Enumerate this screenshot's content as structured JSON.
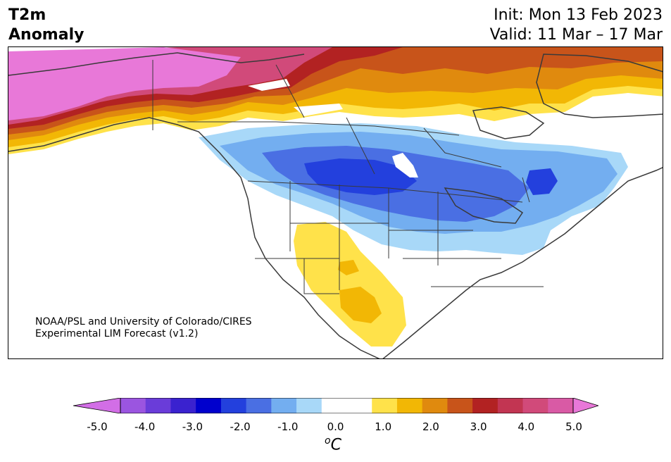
{
  "title": {
    "line1": "T2m",
    "line2": "Anomaly"
  },
  "dates": {
    "init": "Init: Mon 13 Feb 2023",
    "valid": "Valid: 11 Mar – 17 Mar"
  },
  "credit": {
    "line1": "NOAA/PSL and University of Colorado/CIRES",
    "line2": "Experimental LIM Forecast (v1.2)"
  },
  "colorbar": {
    "unit_superscript": "o",
    "unit_main": "C",
    "ticks": [
      "-5.0",
      "-4.0",
      "-3.0",
      "-2.0",
      "-1.0",
      "0.0",
      "1.0",
      "2.0",
      "3.0",
      "4.0",
      "5.0"
    ],
    "colors": [
      "#9b55e0",
      "#6a3cd9",
      "#3a22cf",
      "#0000cd",
      "#2340dd",
      "#4a6fe3",
      "#73aef0",
      "#a8d8f8",
      "#ffffff",
      "#ffffff",
      "#ffe24a",
      "#f2b705",
      "#e08a0e",
      "#c8541a",
      "#b22222",
      "#c23552",
      "#d14a7a",
      "#d95aa5"
    ],
    "extend_low_color": "#d26ee6",
    "extend_high_color": "#e878d8"
  }
}
